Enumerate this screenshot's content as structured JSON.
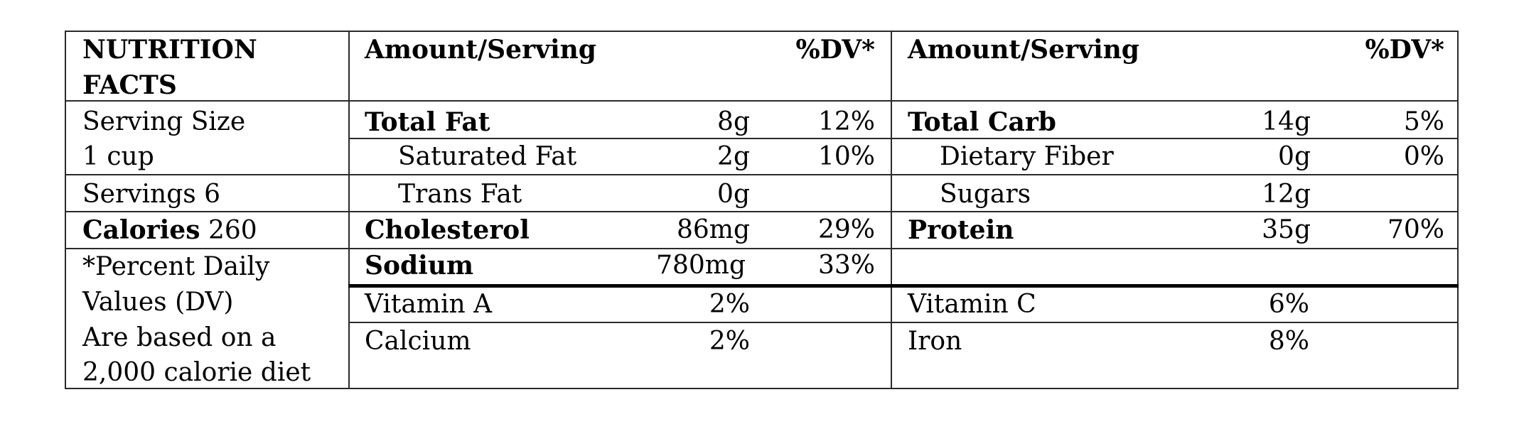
{
  "header": {
    "title_line1": "NUTRITION",
    "title_line2": "FACTS",
    "amount_serving_1": "Amount/Serving",
    "dv_1": "%DV*",
    "amount_serving_2": "Amount/Serving",
    "dv_2": "%DV*"
  },
  "left_column": {
    "serving_size_label": "Serving Size",
    "serving_size_value": "1 cup",
    "servings": "Servings 6",
    "calories_label": "Calories",
    "calories_value": "260",
    "footnote": [
      "*Percent Daily",
      "Values (DV)",
      "Are based on a",
      "2,000 calorie diet"
    ]
  },
  "nutrients_left": [
    {
      "name": "Total Fat",
      "amount": "8g",
      "dv": "12%"
    },
    {
      "name": "Saturated Fat",
      "amount": "2g",
      "dv": "10%"
    },
    {
      "name": "Trans Fat",
      "amount": "0g",
      "dv": ""
    },
    {
      "name": "Cholesterol",
      "amount": "86mg",
      "dv": "29%"
    },
    {
      "name": "Sodium",
      "amount": "780mg",
      "dv": "33%"
    }
  ],
  "nutrients_right": [
    {
      "name": "Total Carb",
      "amount": "14g",
      "dv": "5%"
    },
    {
      "name": "Dietary Fiber",
      "amount": "0g",
      "dv": "0%"
    },
    {
      "name": "Sugars",
      "amount": "12g",
      "dv": ""
    },
    {
      "name": "Protein",
      "amount": "35g",
      "dv": "70%"
    }
  ],
  "vitamins": [
    {
      "name": "Vitamin A",
      "value": "2%"
    },
    {
      "name": "Vitamin C",
      "value": "6%"
    },
    {
      "name": "Calcium",
      "value": "2%"
    },
    {
      "name": "Iron",
      "value": "8%"
    }
  ]
}
